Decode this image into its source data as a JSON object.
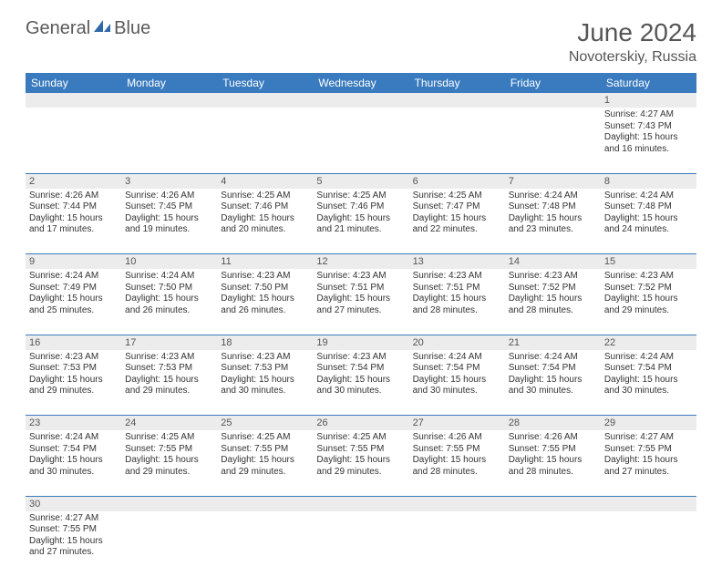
{
  "logo": {
    "text1": "General",
    "text2": "Blue"
  },
  "title": "June 2024",
  "location": "Novoterskiy, Russia",
  "colors": {
    "header_bg": "#3a7bbf",
    "header_text": "#ffffff",
    "daynum_bg": "#ececec",
    "border": "#3a7bbf",
    "title_color": "#555555",
    "body_text": "#333333"
  },
  "typography": {
    "title_fontsize": 28,
    "location_fontsize": 16,
    "header_fontsize": 12,
    "daynum_fontsize": 11,
    "cell_fontsize": 10
  },
  "weekdays": [
    "Sunday",
    "Monday",
    "Tuesday",
    "Wednesday",
    "Thursday",
    "Friday",
    "Saturday"
  ],
  "weeks": [
    [
      null,
      null,
      null,
      null,
      null,
      null,
      {
        "n": "1",
        "sunrise": "Sunrise: 4:27 AM",
        "sunset": "Sunset: 7:43 PM",
        "daylight": "Daylight: 15 hours and 16 minutes."
      }
    ],
    [
      {
        "n": "2",
        "sunrise": "Sunrise: 4:26 AM",
        "sunset": "Sunset: 7:44 PM",
        "daylight": "Daylight: 15 hours and 17 minutes."
      },
      {
        "n": "3",
        "sunrise": "Sunrise: 4:26 AM",
        "sunset": "Sunset: 7:45 PM",
        "daylight": "Daylight: 15 hours and 19 minutes."
      },
      {
        "n": "4",
        "sunrise": "Sunrise: 4:25 AM",
        "sunset": "Sunset: 7:46 PM",
        "daylight": "Daylight: 15 hours and 20 minutes."
      },
      {
        "n": "5",
        "sunrise": "Sunrise: 4:25 AM",
        "sunset": "Sunset: 7:46 PM",
        "daylight": "Daylight: 15 hours and 21 minutes."
      },
      {
        "n": "6",
        "sunrise": "Sunrise: 4:25 AM",
        "sunset": "Sunset: 7:47 PM",
        "daylight": "Daylight: 15 hours and 22 minutes."
      },
      {
        "n": "7",
        "sunrise": "Sunrise: 4:24 AM",
        "sunset": "Sunset: 7:48 PM",
        "daylight": "Daylight: 15 hours and 23 minutes."
      },
      {
        "n": "8",
        "sunrise": "Sunrise: 4:24 AM",
        "sunset": "Sunset: 7:48 PM",
        "daylight": "Daylight: 15 hours and 24 minutes."
      }
    ],
    [
      {
        "n": "9",
        "sunrise": "Sunrise: 4:24 AM",
        "sunset": "Sunset: 7:49 PM",
        "daylight": "Daylight: 15 hours and 25 minutes."
      },
      {
        "n": "10",
        "sunrise": "Sunrise: 4:24 AM",
        "sunset": "Sunset: 7:50 PM",
        "daylight": "Daylight: 15 hours and 26 minutes."
      },
      {
        "n": "11",
        "sunrise": "Sunrise: 4:23 AM",
        "sunset": "Sunset: 7:50 PM",
        "daylight": "Daylight: 15 hours and 26 minutes."
      },
      {
        "n": "12",
        "sunrise": "Sunrise: 4:23 AM",
        "sunset": "Sunset: 7:51 PM",
        "daylight": "Daylight: 15 hours and 27 minutes."
      },
      {
        "n": "13",
        "sunrise": "Sunrise: 4:23 AM",
        "sunset": "Sunset: 7:51 PM",
        "daylight": "Daylight: 15 hours and 28 minutes."
      },
      {
        "n": "14",
        "sunrise": "Sunrise: 4:23 AM",
        "sunset": "Sunset: 7:52 PM",
        "daylight": "Daylight: 15 hours and 28 minutes."
      },
      {
        "n": "15",
        "sunrise": "Sunrise: 4:23 AM",
        "sunset": "Sunset: 7:52 PM",
        "daylight": "Daylight: 15 hours and 29 minutes."
      }
    ],
    [
      {
        "n": "16",
        "sunrise": "Sunrise: 4:23 AM",
        "sunset": "Sunset: 7:53 PM",
        "daylight": "Daylight: 15 hours and 29 minutes."
      },
      {
        "n": "17",
        "sunrise": "Sunrise: 4:23 AM",
        "sunset": "Sunset: 7:53 PM",
        "daylight": "Daylight: 15 hours and 29 minutes."
      },
      {
        "n": "18",
        "sunrise": "Sunrise: 4:23 AM",
        "sunset": "Sunset: 7:53 PM",
        "daylight": "Daylight: 15 hours and 30 minutes."
      },
      {
        "n": "19",
        "sunrise": "Sunrise: 4:23 AM",
        "sunset": "Sunset: 7:54 PM",
        "daylight": "Daylight: 15 hours and 30 minutes."
      },
      {
        "n": "20",
        "sunrise": "Sunrise: 4:24 AM",
        "sunset": "Sunset: 7:54 PM",
        "daylight": "Daylight: 15 hours and 30 minutes."
      },
      {
        "n": "21",
        "sunrise": "Sunrise: 4:24 AM",
        "sunset": "Sunset: 7:54 PM",
        "daylight": "Daylight: 15 hours and 30 minutes."
      },
      {
        "n": "22",
        "sunrise": "Sunrise: 4:24 AM",
        "sunset": "Sunset: 7:54 PM",
        "daylight": "Daylight: 15 hours and 30 minutes."
      }
    ],
    [
      {
        "n": "23",
        "sunrise": "Sunrise: 4:24 AM",
        "sunset": "Sunset: 7:54 PM",
        "daylight": "Daylight: 15 hours and 30 minutes."
      },
      {
        "n": "24",
        "sunrise": "Sunrise: 4:25 AM",
        "sunset": "Sunset: 7:55 PM",
        "daylight": "Daylight: 15 hours and 29 minutes."
      },
      {
        "n": "25",
        "sunrise": "Sunrise: 4:25 AM",
        "sunset": "Sunset: 7:55 PM",
        "daylight": "Daylight: 15 hours and 29 minutes."
      },
      {
        "n": "26",
        "sunrise": "Sunrise: 4:25 AM",
        "sunset": "Sunset: 7:55 PM",
        "daylight": "Daylight: 15 hours and 29 minutes."
      },
      {
        "n": "27",
        "sunrise": "Sunrise: 4:26 AM",
        "sunset": "Sunset: 7:55 PM",
        "daylight": "Daylight: 15 hours and 28 minutes."
      },
      {
        "n": "28",
        "sunrise": "Sunrise: 4:26 AM",
        "sunset": "Sunset: 7:55 PM",
        "daylight": "Daylight: 15 hours and 28 minutes."
      },
      {
        "n": "29",
        "sunrise": "Sunrise: 4:27 AM",
        "sunset": "Sunset: 7:55 PM",
        "daylight": "Daylight: 15 hours and 27 minutes."
      }
    ],
    [
      {
        "n": "30",
        "sunrise": "Sunrise: 4:27 AM",
        "sunset": "Sunset: 7:55 PM",
        "daylight": "Daylight: 15 hours and 27 minutes."
      },
      null,
      null,
      null,
      null,
      null,
      null
    ]
  ]
}
